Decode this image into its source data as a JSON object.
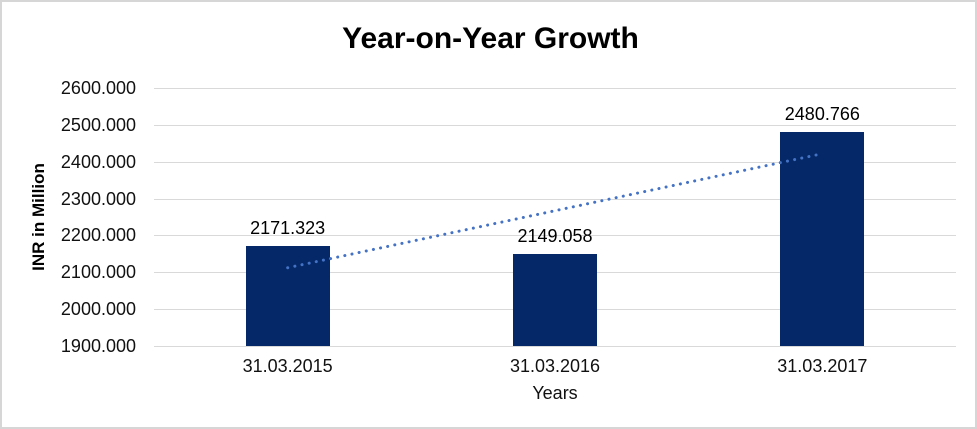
{
  "chart_data": {
    "type": "bar",
    "title": "Year-on-Year Growth",
    "xlabel": "Years",
    "ylabel": "INR in Million",
    "categories": [
      "31.03.2015",
      "31.03.2016",
      "31.03.2017"
    ],
    "values": [
      2171.323,
      2149.058,
      2480.766
    ],
    "data_labels": [
      "2171.323",
      "2149.058",
      "2480.766"
    ],
    "ylim": [
      1900,
      2600
    ],
    "ytick_step": 100,
    "ytick_decimals": 3,
    "grid": true,
    "legend": "none",
    "trendline": {
      "style": "dotted",
      "start_value": 2112.3,
      "end_value": 2421.8
    },
    "colors": {
      "bar": "#052868",
      "trendline": "#4472C4",
      "gridline": "#d9d9d9",
      "text": "#111111",
      "title_text": "#000000",
      "background": "#ffffff",
      "border": "#d6d6d6"
    }
  }
}
